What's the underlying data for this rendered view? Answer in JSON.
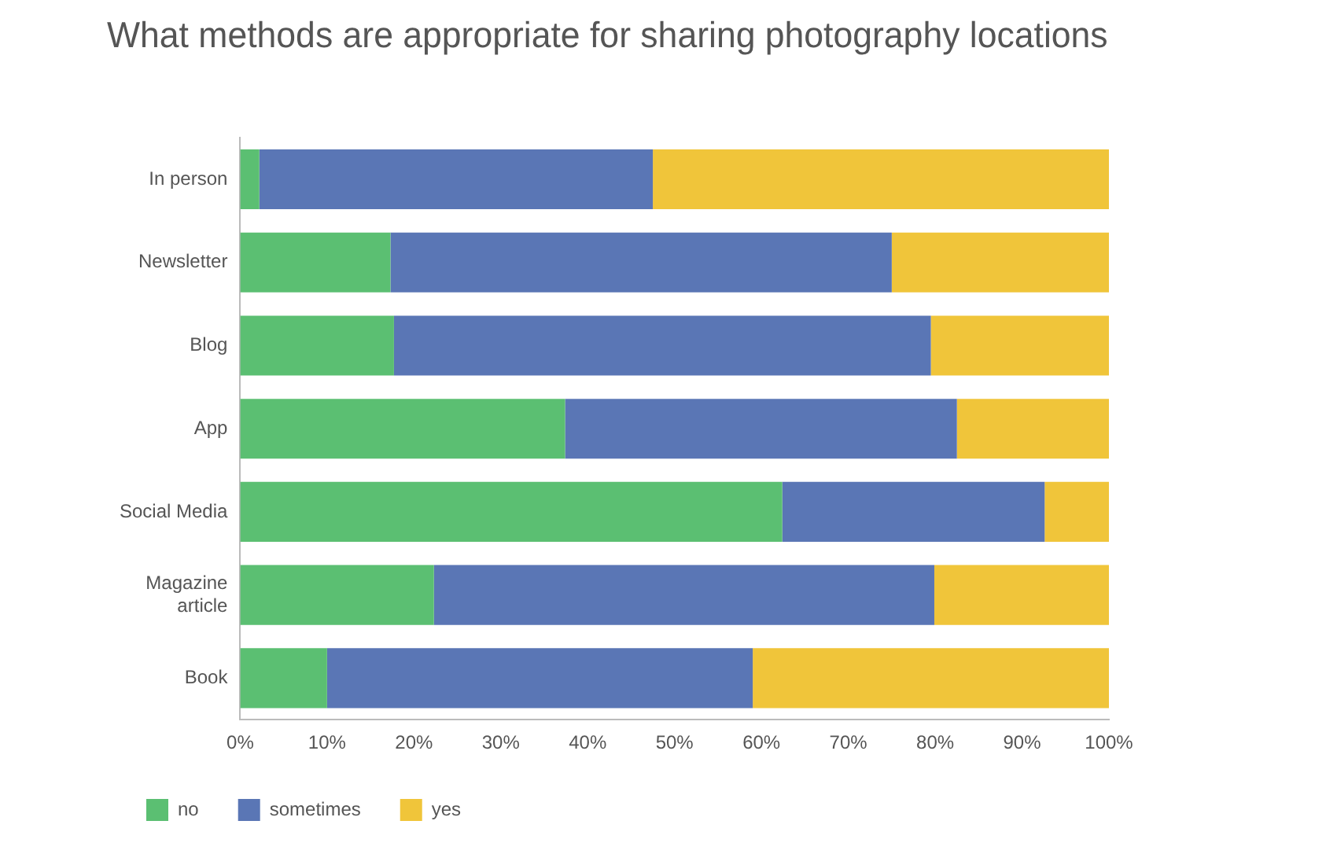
{
  "chart_data": {
    "type": "bar",
    "title": "What methods are appropriate for sharing photography locations",
    "orientation": "horizontal",
    "stacked": true,
    "categories": [
      "In person",
      "Newsletter",
      "Blog",
      "App",
      "Social Media",
      "Magazine article",
      "Book"
    ],
    "series": [
      {
        "name": "no",
        "color": "#5bbf72",
        "values": [
          2.2,
          17.3,
          17.7,
          37.4,
          62.4,
          22.3,
          10
        ]
      },
      {
        "name": "sometimes",
        "color": "#5a76b5",
        "values": [
          45.3,
          57.7,
          61.8,
          45.1,
          30.2,
          57.6,
          49
        ]
      },
      {
        "name": "yes",
        "color": "#f0c53a",
        "values": [
          52.5,
          25,
          20.5,
          17.5,
          7.4,
          20.1,
          41
        ]
      }
    ],
    "xlim": [
      0,
      100
    ],
    "xticks": [
      {
        "value": 0,
        "label": "0%"
      },
      {
        "value": 10,
        "label": "10%"
      },
      {
        "value": 20,
        "label": "20%"
      },
      {
        "value": 30,
        "label": "30%"
      },
      {
        "value": 40,
        "label": "40%"
      },
      {
        "value": 50,
        "label": "50%"
      },
      {
        "value": 60,
        "label": "60%"
      },
      {
        "value": 70,
        "label": "70%"
      },
      {
        "value": 80,
        "label": "80%"
      },
      {
        "value": 90,
        "label": "90%"
      },
      {
        "value": 100,
        "label": "100%"
      }
    ],
    "grid": false,
    "legend": "bottom left"
  }
}
